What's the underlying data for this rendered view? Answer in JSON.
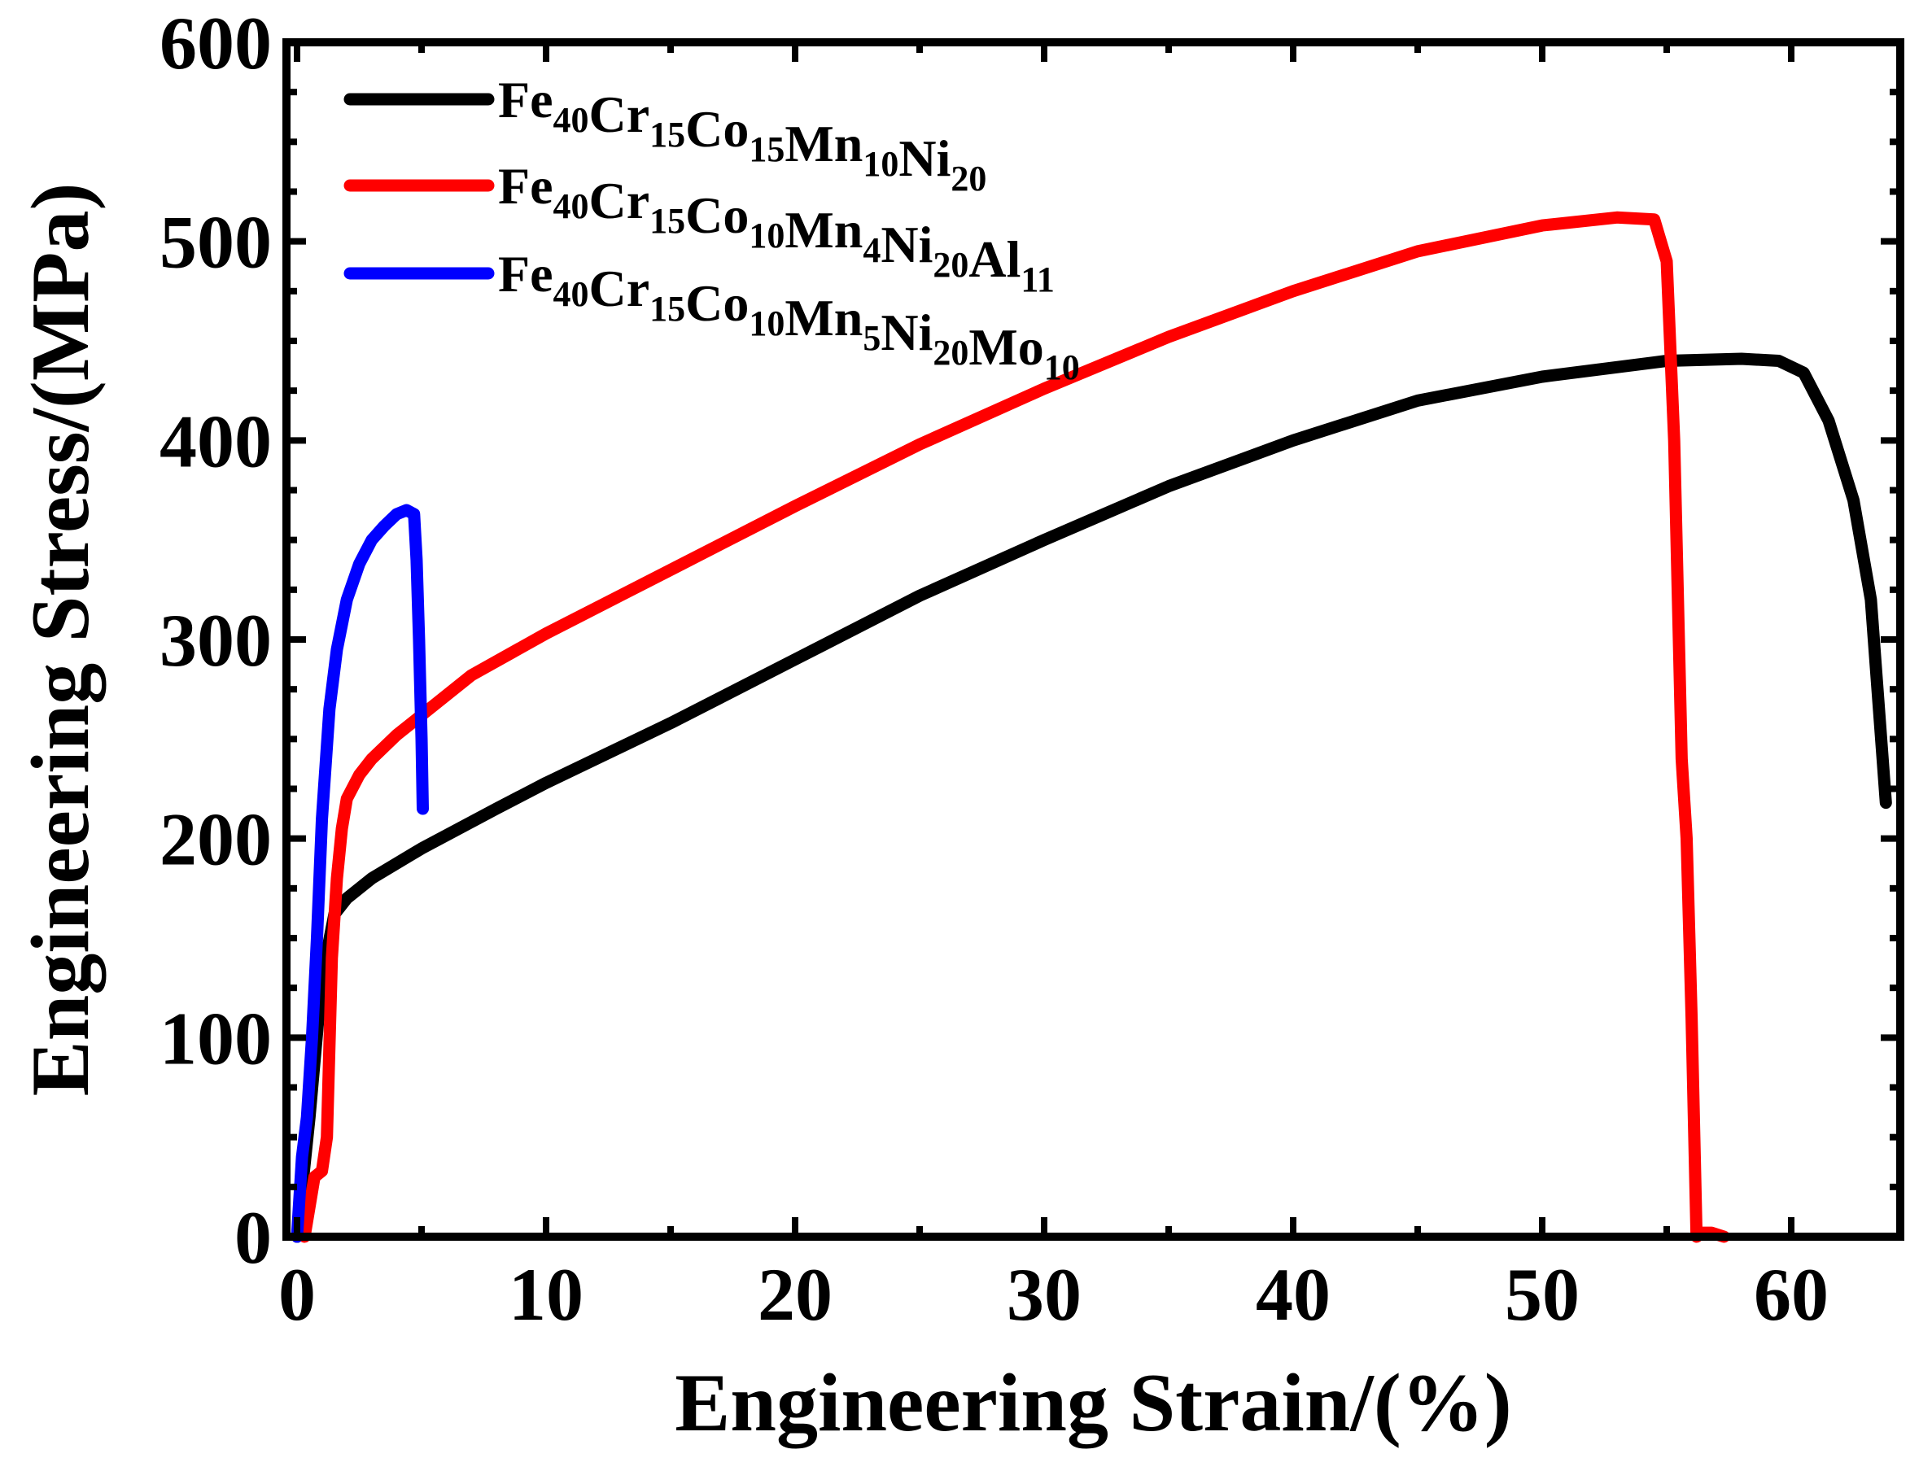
{
  "chart_data": {
    "type": "line",
    "title": "",
    "xlabel": "Engineering Strain/(%)",
    "ylabel": "Engineering Stress/(MPa)",
    "xlim": [
      0,
      64.5
    ],
    "ylim": [
      0,
      600
    ],
    "x_ticks": [
      0,
      10,
      20,
      30,
      40,
      50,
      60
    ],
    "y_ticks": [
      0,
      100,
      200,
      300,
      400,
      500,
      600
    ],
    "x_tick_labels": [
      "0",
      "10",
      "20",
      "30",
      "40",
      "50",
      "60"
    ],
    "y_tick_labels": [
      "0",
      "100",
      "200",
      "300",
      "400",
      "500",
      "600"
    ],
    "grid": false,
    "legend_position": "top-left",
    "series": [
      {
        "name": "Fe40Cr15Co15Mn10Ni20",
        "legend_parts": [
          {
            "text": "Fe",
            "sub": "40"
          },
          {
            "text": "Cr",
            "sub": "15"
          },
          {
            "text": "Co",
            "sub": "15"
          },
          {
            "text": "Mn",
            "sub": "10"
          },
          {
            "text": "Ni",
            "sub": "20"
          }
        ],
        "color": "#000000",
        "x": [
          0,
          0.5,
          1.0,
          1.5,
          2.0,
          3.0,
          5.0,
          8.0,
          10.0,
          15.0,
          20.0,
          25.0,
          30.0,
          35.0,
          40.0,
          45.0,
          50.0,
          55.0,
          58.0,
          59.5,
          60.5,
          61.5,
          62.5,
          63.2,
          63.8
        ],
        "y": [
          0,
          60,
          130,
          162,
          170,
          180,
          195,
          215,
          228,
          258,
          290,
          322,
          350,
          377,
          400,
          420,
          432,
          440,
          441,
          440,
          434,
          410,
          370,
          320,
          218
        ]
      },
      {
        "name": "Fe40Cr15Co10Mn4Ni20Al11",
        "legend_parts": [
          {
            "text": "Fe",
            "sub": "40"
          },
          {
            "text": "Cr",
            "sub": "15"
          },
          {
            "text": "Co",
            "sub": "10"
          },
          {
            "text": "Mn",
            "sub": "4"
          },
          {
            "text": "Ni",
            "sub": "20"
          },
          {
            "text": "Al",
            "sub": "11"
          }
        ],
        "color": "#ff0000",
        "x": [
          0.3,
          0.7,
          1.0,
          1.2,
          1.4,
          1.6,
          1.8,
          2.0,
          2.5,
          3.0,
          4.0,
          5.0,
          7.0,
          10.0,
          15.0,
          20.0,
          25.0,
          30.0,
          35.0,
          40.0,
          45.0,
          50.0,
          53.0,
          54.5,
          55.0,
          55.3,
          55.6,
          55.8,
          56.0,
          56.2,
          56.4,
          56.8,
          57.3
        ],
        "y": [
          0,
          30,
          33,
          50,
          140,
          180,
          205,
          220,
          232,
          240,
          252,
          262,
          282,
          303,
          335,
          367,
          398,
          426,
          452,
          475,
          495,
          508,
          512,
          511,
          490,
          400,
          240,
          200,
          110,
          0,
          2,
          2,
          0
        ]
      },
      {
        "name": "Fe40Cr15Co10Mn5Ni20Mo10",
        "legend_parts": [
          {
            "text": "Fe",
            "sub": "40"
          },
          {
            "text": "Cr",
            "sub": "15"
          },
          {
            "text": "Co",
            "sub": "10"
          },
          {
            "text": "Mn",
            "sub": "5"
          },
          {
            "text": "Ni",
            "sub": "20"
          },
          {
            "text": "Mo",
            "sub": "10"
          }
        ],
        "color": "#0000ff",
        "x": [
          0,
          0.2,
          0.4,
          0.6,
          0.8,
          1.0,
          1.3,
          1.6,
          2.0,
          2.5,
          3.0,
          3.5,
          4.0,
          4.4,
          4.7,
          4.8,
          4.9,
          5.0,
          5.05
        ],
        "y": [
          0,
          40,
          60,
          100,
          150,
          210,
          265,
          295,
          320,
          338,
          350,
          357,
          363,
          365,
          363,
          340,
          300,
          250,
          215
        ]
      }
    ]
  }
}
